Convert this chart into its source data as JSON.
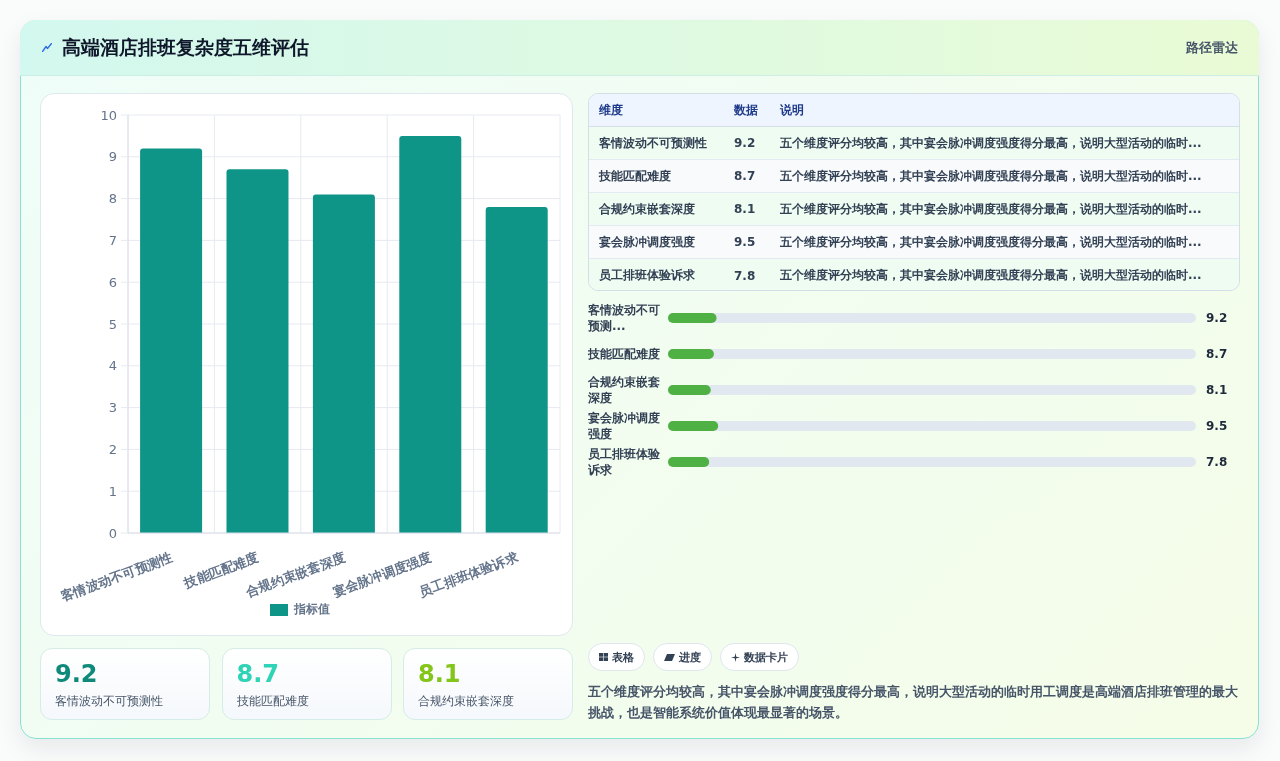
{
  "chart_data": [
    {
      "type": "other",
      "title": "高端酒店排班复杂度五维评估",
      "subtitle": "路径雷达"
    },
    {
      "type": "bar",
      "categories": [
        "客情波动不可预测性",
        "技能匹配难度",
        "合规约束嵌套深度",
        "宴会脉冲调度强度",
        "员工排班体验诉求"
      ],
      "series": [
        {
          "name": "指标值",
          "color": "#0f9488",
          "values": [
            9.2,
            8.7,
            8.1,
            9.5,
            7.8
          ]
        }
      ],
      "ylim": [
        0,
        10
      ],
      "yticks": [
        0,
        1,
        2,
        3,
        4,
        5,
        6,
        7,
        8,
        9,
        10
      ],
      "grid": true,
      "legend": "bottom"
    },
    {
      "type": "other",
      "categories": [
        "客情波动不可预测性",
        "技能匹配难度",
        "合规约束嵌套深度",
        "宴会脉冲调度强度",
        "员工排班体验诉求"
      ],
      "values": [
        9.2,
        8.7,
        8.1,
        9.5,
        7.8
      ],
      "data_labels": true,
      "annotations": [
        "维度",
        "数据",
        "说明",
        "五个维度评分均较高，其中宴会脉冲调度强度得分最高，说明大型活动的临时...",
        "五个维度评分均较高，其中宴会脉冲调度强度得分最高，说明大型活动的临时...",
        "五个维度评分均较高，其中宴会脉冲调度强度得分最高，说明大型活动的临时...",
        "五个维度评分均较高，其中宴会脉冲调度强度得分最高，说明大型活动的临时...",
        "五个维度评分均较高，其中宴会脉冲调度强度得分最高，说明大型活动的临时..."
      ]
    },
    {
      "type": "bar",
      "orientation": "horizontal",
      "categories": [
        "客情波动不可预测...",
        "技能匹配难度",
        "合规约束嵌套深度",
        "宴会脉冲调度强度",
        "员工排班体验诉求"
      ],
      "values": [
        9.2,
        8.7,
        8.1,
        9.5,
        7.8
      ],
      "color": "#4fb043",
      "xlim": [
        0,
        100
      ],
      "tick_labels": "y",
      "data_labels": true
    },
    {
      "type": "other",
      "categories": [
        "客情波动不可预测性",
        "技能匹配难度",
        "合规约束嵌套深度"
      ],
      "values": [
        9.2,
        8.7,
        8.1
      ],
      "data_labels": true
    },
    {
      "type": "other",
      "categories": [
        "表格",
        "进度",
        "数据卡片"
      ],
      "annotations": [
        "五个维度评分均较高，其中宴会脉冲调度强度得分最高，说明大型活动的临时用工调度是高端酒店排班管理的最大挑战，也是智能系统价值体现最显著的场景。"
      ]
    }
  ]
}
